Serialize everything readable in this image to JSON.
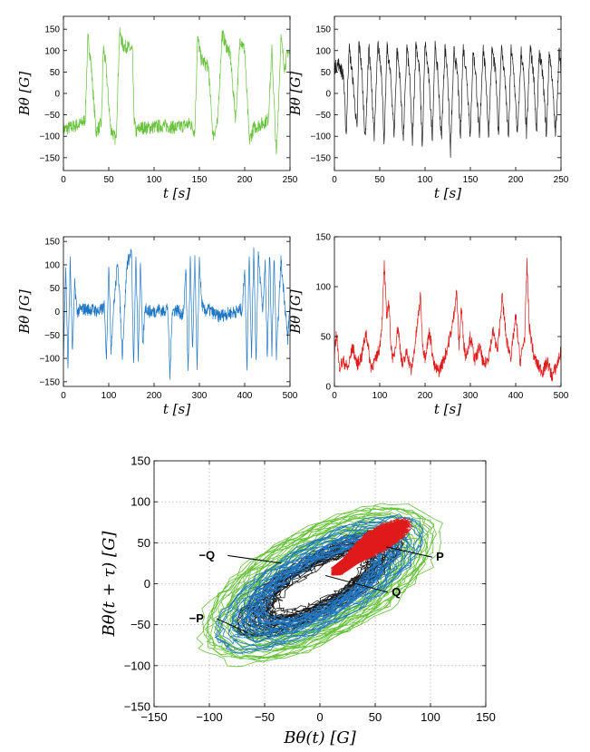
{
  "chart_data": [
    {
      "type": "line",
      "id": "top-left",
      "xlabel": "t [s]",
      "ylabel": "Bθ [G]",
      "xlim": [
        0,
        250
      ],
      "ylim": [
        -180,
        180
      ],
      "xticks": [
        0,
        50,
        100,
        150,
        200,
        250
      ],
      "yticks": [
        -150,
        -100,
        -50,
        0,
        50,
        100,
        150
      ],
      "color": "#66c23a",
      "grid": false,
      "series": [
        {
          "x": [
            0,
            20,
            24,
            27,
            30,
            36,
            42,
            44,
            47,
            52,
            58,
            62,
            66,
            70,
            76,
            78,
            80,
            85,
            95,
            110,
            125,
            140,
            145,
            148,
            152,
            160,
            165,
            170,
            175,
            180,
            184,
            190,
            195,
            200,
            205,
            210,
            220,
            226,
            230,
            235,
            240,
            244,
            248,
            250
          ],
          "y": [
            -85,
            -70,
            -60,
            130,
            80,
            -90,
            -70,
            110,
            60,
            -80,
            -110,
            140,
            110,
            110,
            100,
            -60,
            -90,
            -80,
            -80,
            -75,
            -80,
            -70,
            -90,
            130,
            80,
            60,
            -100,
            -70,
            140,
            110,
            90,
            -60,
            130,
            100,
            -110,
            -80,
            -70,
            -60,
            100,
            -150,
            130,
            60,
            100,
            90
          ]
        }
      ]
    },
    {
      "type": "line",
      "id": "top-right",
      "xlabel": "t [s]",
      "ylabel": "Bθ [G]",
      "xlim": [
        0,
        250
      ],
      "ylim": [
        -180,
        180
      ],
      "xticks": [
        0,
        50,
        100,
        150,
        200,
        250
      ],
      "yticks": [
        -150,
        -100,
        -50,
        0,
        50,
        100,
        150
      ],
      "color": "#1a1a1a",
      "grid": false,
      "series": [
        {
          "x": [
            0,
            5,
            10,
            13,
            16,
            20,
            25,
            27,
            30,
            34,
            38,
            40,
            44,
            48,
            52,
            55,
            58,
            62,
            66,
            69,
            72,
            76,
            80,
            83,
            86,
            90,
            94,
            97,
            100,
            104,
            108,
            111,
            114,
            118,
            122,
            125,
            128,
            132,
            136,
            139,
            142,
            146,
            150,
            153,
            156,
            160,
            164,
            167,
            170,
            174,
            178,
            181,
            184,
            188,
            192,
            195,
            198,
            202,
            206,
            209,
            212,
            216,
            220,
            223,
            226,
            230,
            234,
            237,
            240,
            244,
            248,
            250
          ],
          "y": [
            60,
            70,
            40,
            -100,
            110,
            40,
            -90,
            120,
            60,
            -110,
            110,
            50,
            -100,
            115,
            50,
            -120,
            110,
            40,
            -100,
            105,
            45,
            -110,
            110,
            40,
            -120,
            120,
            50,
            -130,
            120,
            40,
            -100,
            110,
            50,
            -110,
            110,
            40,
            -140,
            100,
            40,
            -110,
            110,
            40,
            -100,
            100,
            45,
            -110,
            110,
            40,
            -100,
            105,
            45,
            -100,
            110,
            40,
            -110,
            105,
            45,
            -100,
            100,
            40,
            -100,
            110,
            40,
            -100,
            100,
            40,
            -100,
            100,
            40,
            -100,
            100,
            50
          ]
        }
      ]
    },
    {
      "type": "line",
      "id": "middle-left",
      "xlabel": "t [s]",
      "ylabel": "Bθ [G]",
      "xlim": [
        0,
        500
      ],
      "ylim": [
        -160,
        160
      ],
      "xticks": [
        0,
        100,
        200,
        300,
        400,
        500
      ],
      "yticks": [
        -150,
        -100,
        -50,
        0,
        50,
        100,
        150
      ],
      "color": "#1f77c4",
      "grid": false,
      "series": [
        {
          "x": [
            0,
            5,
            10,
            15,
            20,
            25,
            30,
            40,
            60,
            80,
            90,
            95,
            100,
            105,
            110,
            120,
            130,
            140,
            150,
            155,
            160,
            165,
            170,
            175,
            180,
            185,
            190,
            200,
            210,
            220,
            230,
            235,
            240,
            250,
            265,
            270,
            275,
            280,
            285,
            290,
            295,
            300,
            305,
            310,
            320,
            340,
            360,
            380,
            395,
            400,
            405,
            410,
            415,
            420,
            425,
            430,
            440,
            445,
            450,
            455,
            460,
            465,
            470,
            480,
            490,
            495,
            500
          ],
          "y": [
            -100,
            100,
            -120,
            110,
            -90,
            60,
            0,
            5,
            5,
            0,
            10,
            -100,
            110,
            -80,
            0,
            110,
            -90,
            100,
            130,
            -120,
            120,
            -100,
            110,
            -80,
            10,
            5,
            0,
            0,
            5,
            0,
            10,
            -140,
            0,
            5,
            -10,
            100,
            -130,
            110,
            -90,
            120,
            -130,
            110,
            20,
            0,
            5,
            -10,
            -5,
            0,
            5,
            100,
            -120,
            130,
            -100,
            140,
            -110,
            120,
            0,
            110,
            -110,
            130,
            -90,
            120,
            -100,
            110,
            0,
            -60,
            20
          ]
        }
      ]
    },
    {
      "type": "line",
      "id": "middle-right",
      "xlabel": "t [s]",
      "ylabel": "Bθ [G]",
      "xlim": [
        0,
        500
      ],
      "ylim": [
        0,
        150
      ],
      "xticks": [
        0,
        100,
        200,
        300,
        400,
        500
      ],
      "yticks": [
        0,
        50,
        100,
        150
      ],
      "color": "#e01a1a",
      "grid": false,
      "series": [
        {
          "x": [
            0,
            5,
            10,
            20,
            30,
            40,
            50,
            60,
            70,
            80,
            90,
            100,
            105,
            110,
            115,
            120,
            125,
            130,
            140,
            150,
            160,
            170,
            180,
            190,
            195,
            200,
            210,
            220,
            230,
            240,
            250,
            260,
            270,
            275,
            280,
            285,
            290,
            300,
            310,
            320,
            330,
            340,
            350,
            360,
            370,
            380,
            390,
            400,
            410,
            420,
            425,
            430,
            440,
            450,
            460,
            470,
            480,
            490,
            500
          ],
          "y": [
            30,
            55,
            20,
            25,
            18,
            40,
            22,
            30,
            55,
            20,
            25,
            40,
            65,
            122,
            70,
            85,
            40,
            25,
            60,
            20,
            35,
            15,
            50,
            90,
            40,
            30,
            55,
            20,
            15,
            25,
            40,
            60,
            95,
            40,
            80,
            45,
            30,
            50,
            25,
            40,
            20,
            30,
            55,
            35,
            90,
            45,
            30,
            70,
            25,
            50,
            123,
            60,
            30,
            20,
            15,
            25,
            10,
            20,
            35
          ]
        }
      ]
    },
    {
      "type": "line",
      "id": "phase-portrait",
      "xlabel": "Bθ(t) [G]",
      "ylabel": "Bθ(t + τ) [G]",
      "xlim": [
        -150,
        150
      ],
      "ylim": [
        -150,
        150
      ],
      "xticks": [
        -150,
        -100,
        -50,
        0,
        50,
        100,
        150
      ],
      "yticks": [
        -150,
        -100,
        -50,
        0,
        50,
        100,
        150
      ],
      "grid": true,
      "annotations": [
        {
          "label": "−Q",
          "target": [
            -35,
            25
          ],
          "text_at": [
            -95,
            30
          ]
        },
        {
          "label": "−P",
          "target": [
            -65,
            -60
          ],
          "text_at": [
            -105,
            -47
          ]
        },
        {
          "label": "P",
          "target": [
            60,
            45
          ],
          "text_at": [
            105,
            28
          ]
        },
        {
          "label": "Q",
          "target": [
            5,
            10
          ],
          "text_at": [
            65,
            -15
          ]
        }
      ],
      "series": [
        {
          "color": "#66c23a",
          "kind": "loop",
          "cx": 0,
          "cy": 0,
          "rx": 120,
          "ry": 105,
          "rot": 40
        },
        {
          "color": "#1a1a1a",
          "kind": "loop",
          "cx": 0,
          "cy": 0,
          "rx": 85,
          "ry": 55,
          "rot": 40
        },
        {
          "color": "#1f77c4",
          "kind": "loop",
          "cx": 0,
          "cy": 0,
          "rx": 105,
          "ry": 75,
          "rot": 40
        },
        {
          "color": "#e01a1a",
          "kind": "cluster",
          "cx": 55,
          "cy": 55,
          "rx": 30,
          "ry": 25,
          "rot": 40
        }
      ]
    }
  ]
}
